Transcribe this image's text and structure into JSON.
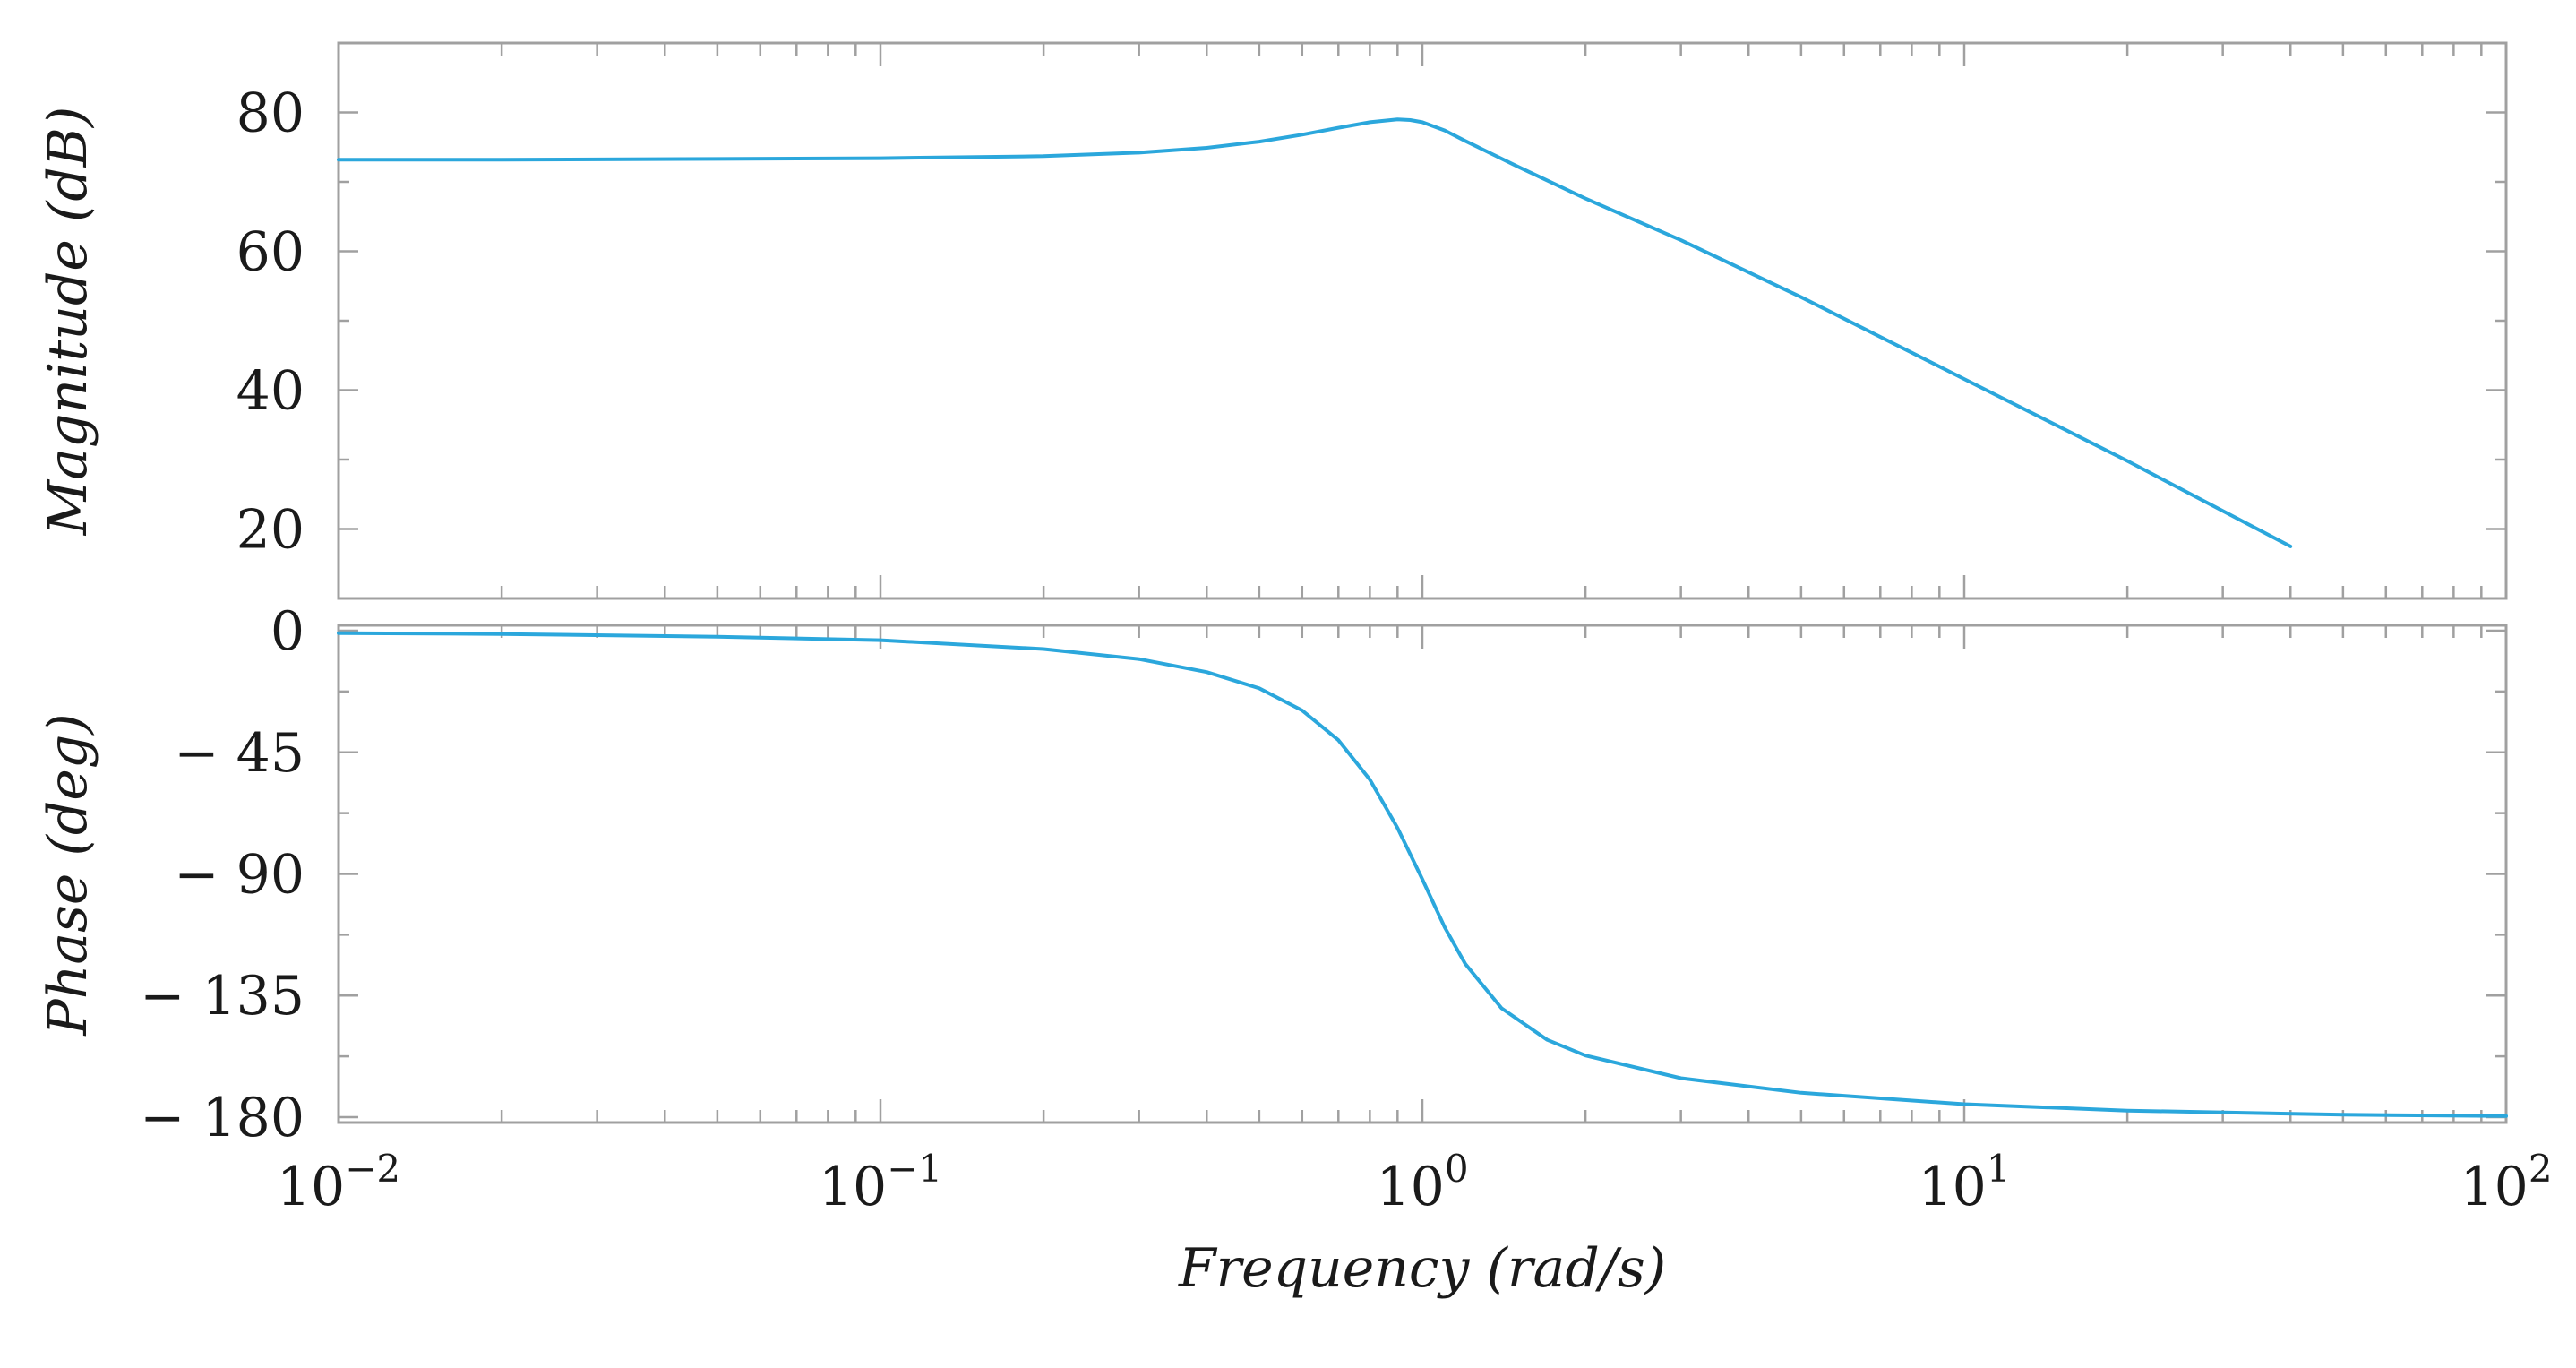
{
  "colors": {
    "series": "#2ba7dc",
    "frame": "#a0a0a0",
    "text": "#1a1a1a"
  },
  "chart_data": [
    {
      "type": "line",
      "panel": "magnitude",
      "ylabel": "Magnitude (dB)",
      "xscale": "log",
      "xlim": [
        0.01,
        100
      ],
      "ylim": [
        10,
        90
      ],
      "yticks": [
        20,
        40,
        60,
        80
      ],
      "ytick_labels": [
        "20",
        "40",
        "60",
        "80"
      ],
      "series": [
        {
          "name": "magnitude",
          "x": [
            0.01,
            0.02,
            0.05,
            0.1,
            0.2,
            0.3,
            0.4,
            0.5,
            0.6,
            0.7,
            0.8,
            0.9,
            0.95,
            1.0,
            1.1,
            1.2,
            1.5,
            2,
            3,
            5,
            10,
            20,
            40
          ],
          "y": [
            73.2,
            73.2,
            73.3,
            73.4,
            73.7,
            74.2,
            74.9,
            75.8,
            76.8,
            77.8,
            78.6,
            79.0,
            78.9,
            78.6,
            77.4,
            75.9,
            72.2,
            67.6,
            61.6,
            53.4,
            41.6,
            29.8,
            17.5
          ]
        }
      ]
    },
    {
      "type": "line",
      "panel": "phase",
      "ylabel": "Phase (deg)",
      "xlabel": "Frequency (rad/s)",
      "xscale": "log",
      "xlim": [
        0.01,
        100
      ],
      "ylim": [
        -182,
        2
      ],
      "yticks": [
        0,
        -45,
        -90,
        -135,
        -180
      ],
      "ytick_labels": [
        "0",
        "− 45",
        "− 90",
        "− 135",
        "− 180"
      ],
      "xticks": [
        0.01,
        0.1,
        1,
        10,
        100
      ],
      "xtick_labels": [
        {
          "base": "10",
          "exp": "−2"
        },
        {
          "base": "10",
          "exp": "−1"
        },
        {
          "base": "10",
          "exp": "0"
        },
        {
          "base": "10",
          "exp": "1"
        },
        {
          "base": "10",
          "exp": "2"
        }
      ],
      "series": [
        {
          "name": "phase",
          "x": [
            0.01,
            0.02,
            0.05,
            0.1,
            0.2,
            0.3,
            0.4,
            0.5,
            0.6,
            0.7,
            0.8,
            0.9,
            1.0,
            1.1,
            1.2,
            1.4,
            1.7,
            2,
            3,
            5,
            10,
            20,
            50,
            100
          ],
          "y": [
            -0.9,
            -1.2,
            -2.2,
            -3.5,
            -6.8,
            -10.5,
            -15.3,
            -21.3,
            -29.5,
            -40.5,
            -55.1,
            -73.0,
            -92.0,
            -109.8,
            -123.3,
            -139.7,
            -151.4,
            -157.2,
            -165.6,
            -171.0,
            -175.2,
            -177.6,
            -179.1,
            -179.6
          ]
        }
      ]
    }
  ]
}
